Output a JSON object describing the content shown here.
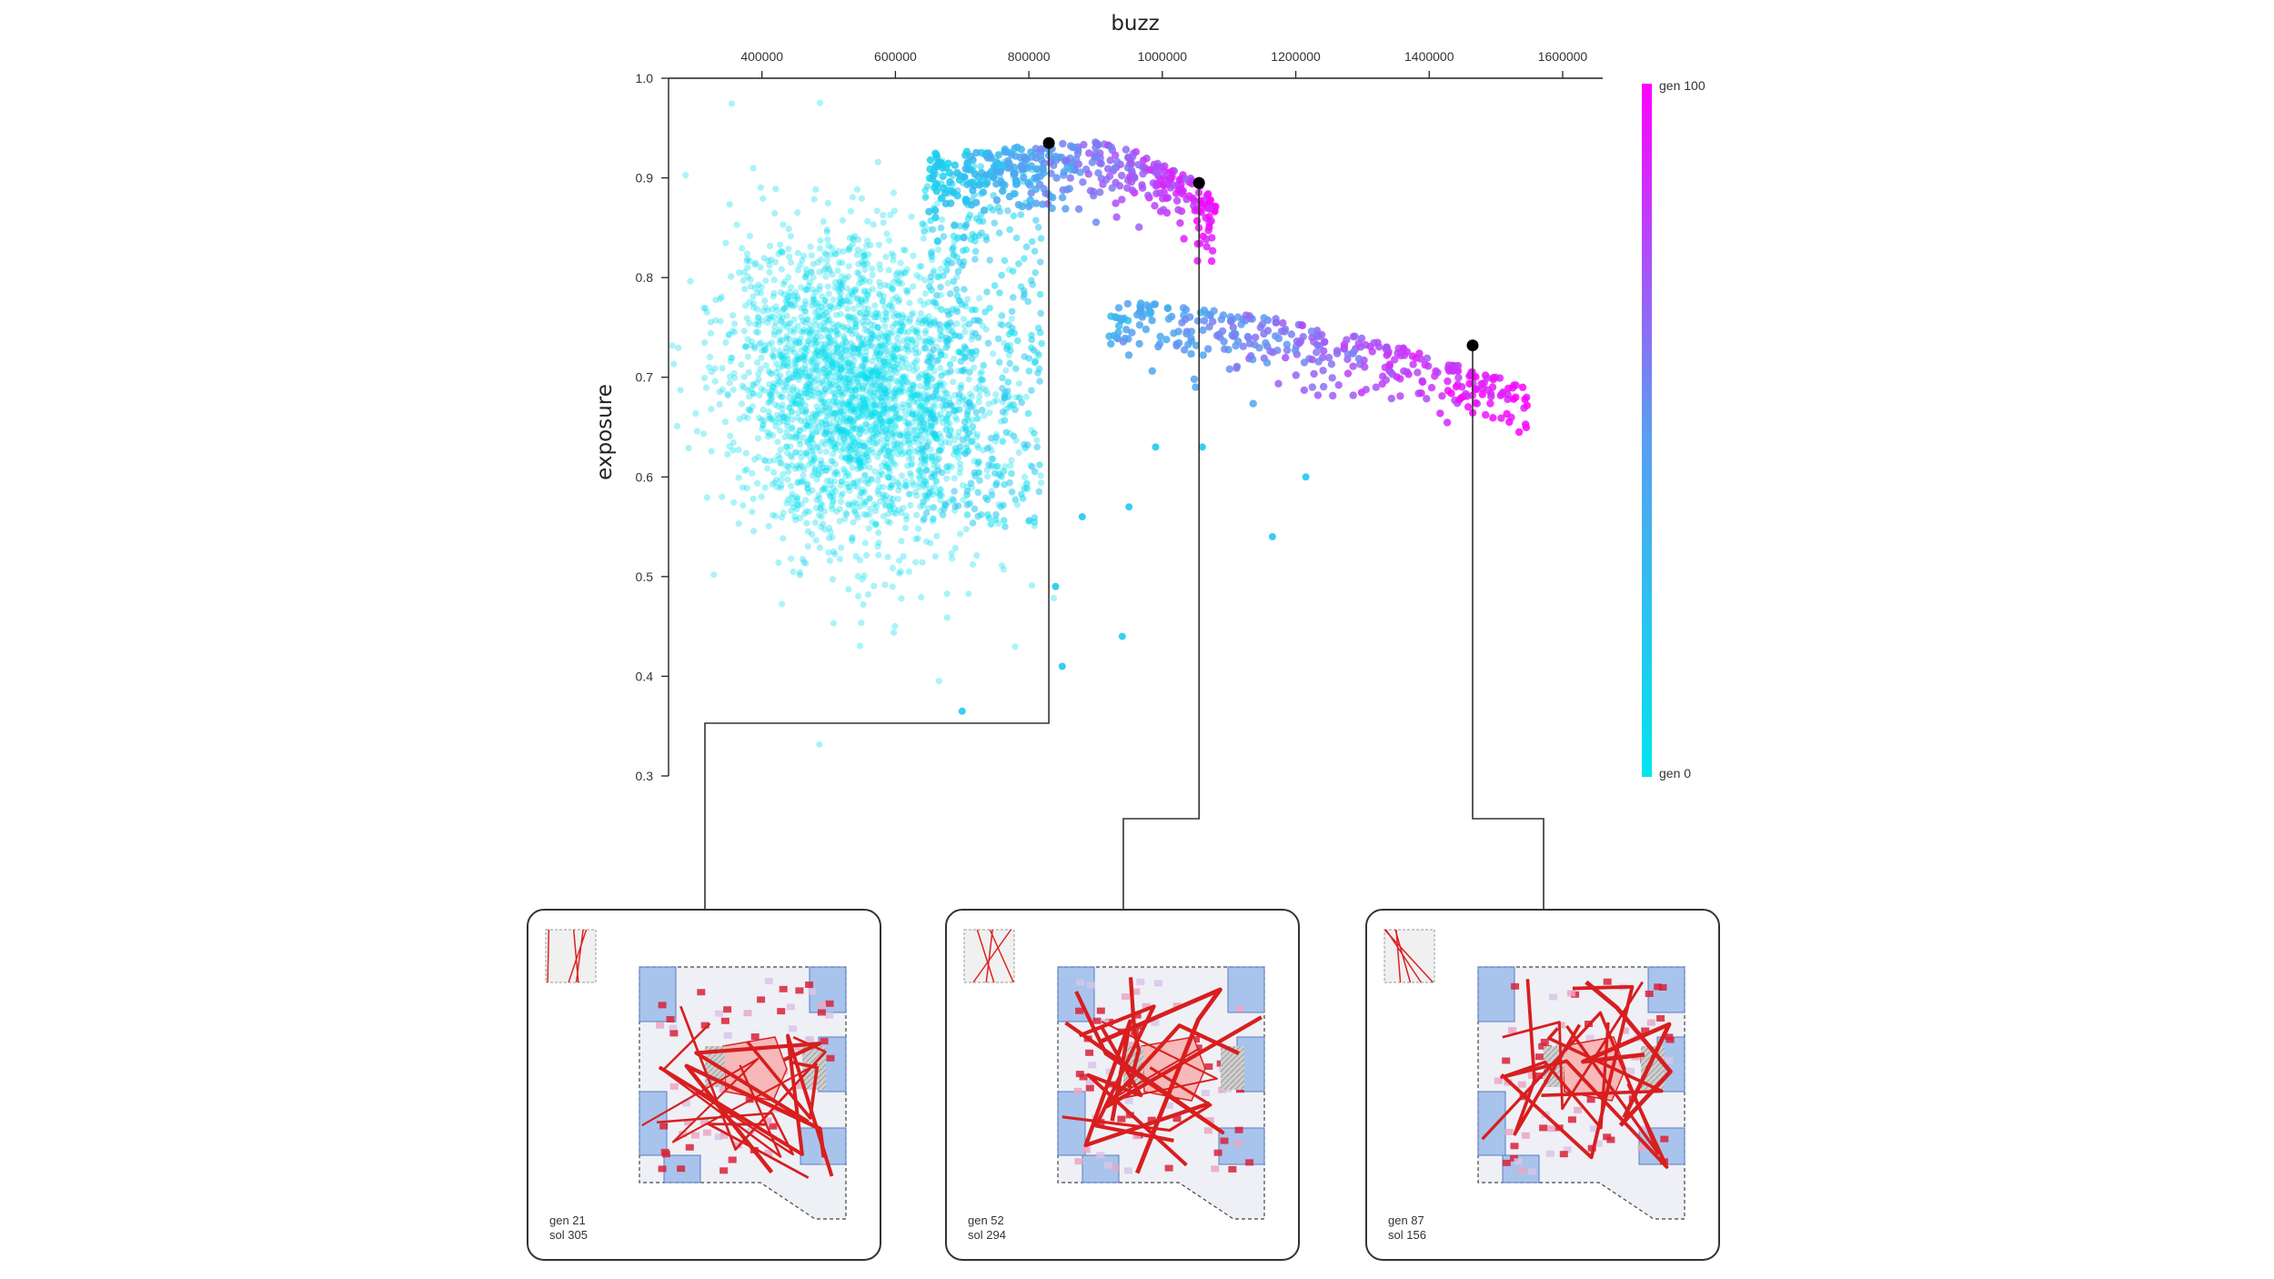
{
  "chart_data": {
    "type": "scatter",
    "xlabel": "buzz",
    "ylabel": "exposure",
    "xlim": [
      260000,
      1660000
    ],
    "ylim": [
      0.3,
      1.0
    ],
    "x_ticks": [
      400000,
      600000,
      800000,
      1000000,
      1200000,
      1400000,
      1600000
    ],
    "x_tick_labels": [
      "400000",
      "600000",
      "800000",
      "1000000",
      "1200000",
      "1400000",
      "1600000"
    ],
    "y_ticks": [
      0.3,
      0.4,
      0.5,
      0.6,
      0.7,
      0.8,
      0.9,
      1.0
    ],
    "y_tick_labels": [
      "0.3",
      "0.4",
      "0.5",
      "0.6",
      "0.7",
      "0.8",
      "0.9",
      "1.0"
    ],
    "x_axis_position": "top",
    "grid": false,
    "color_by": "generation",
    "colorbar": {
      "min_label": "gen 0",
      "max_label": "gen 100",
      "min_color": "#00e5ee",
      "max_color": "#ff00ff"
    },
    "clusters": [
      {
        "label": "",
        "center": [
          540000,
          0.685
        ],
        "spread": [
          110000,
          0.075
        ],
        "gen_range": [
          0,
          20
        ]
      },
      {
        "label": "",
        "arc": "upper front",
        "x_range": [
          650000,
          1080000
        ],
        "y_range": [
          0.84,
          0.945
        ],
        "gen_range": [
          20,
          100
        ]
      },
      {
        "label": "",
        "arc": "lower front",
        "x_range": [
          900000,
          1550000
        ],
        "y_range": [
          0.69,
          0.775
        ],
        "gen_range": [
          40,
          100
        ]
      }
    ],
    "highlighted_points": [
      {
        "x": 830000,
        "y": 0.935,
        "gen": 21,
        "sol": 305
      },
      {
        "x": 1055000,
        "y": 0.895,
        "gen": 52,
        "sol": 294
      },
      {
        "x": 1465000,
        "y": 0.732,
        "gen": 87,
        "sol": 156
      }
    ]
  },
  "panels": [
    {
      "gen_label": "gen 21",
      "sol_label": "sol  305"
    },
    {
      "gen_label": "gen 52",
      "sol_label": "sol  294"
    },
    {
      "gen_label": "gen 87",
      "sol_label": "sol  156"
    }
  ],
  "colors": {
    "axis": "#222222",
    "connector": "#333333",
    "road_red": "#d81e1e",
    "block_blue": "#8ab0e8",
    "highlight_marker": "#000000"
  }
}
